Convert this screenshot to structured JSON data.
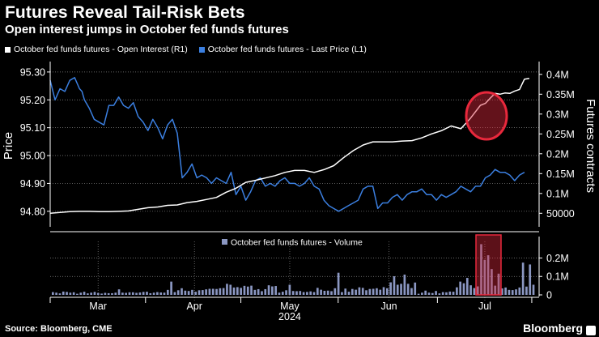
{
  "title": "Futures Reveal Tail-Risk Bets",
  "subtitle": "Open interest jumps in October fed funds futures",
  "legend": [
    {
      "label": "October fed funds futures - Open Interest (R1)",
      "color": "#ffffff"
    },
    {
      "label": "October fed funds futures - Last Price (L1)",
      "color": "#3b7fe0"
    }
  ],
  "footer": {
    "source": "Source: Bloomberg, CME",
    "brand": "Bloomberg"
  },
  "chart_data": [
    {
      "type": "line",
      "title": "Futures Reveal Tail-Risk Bets",
      "ylabel": "Price",
      "y2label": "Futures contracts",
      "ylim": [
        94.75,
        95.32
      ],
      "yticks": [
        94.8,
        94.9,
        95.0,
        95.1,
        95.2,
        95.3
      ],
      "ytick_labels": [
        "94.80",
        "94.90",
        "95.00",
        "95.10",
        "95.20",
        "95.30"
      ],
      "y2lim": [
        20000,
        420000
      ],
      "y2ticks": [
        50000,
        100000,
        150000,
        200000,
        250000,
        300000,
        350000,
        400000
      ],
      "y2tick_labels": [
        "50000",
        "0.1M",
        "0.15M",
        "0.2M",
        "0.25M",
        "0.3M",
        "0.35M",
        "0.4M"
      ],
      "x_range": [
        0,
        100
      ],
      "series": [
        {
          "name": "October fed funds futures - Last Price (L1)",
          "axis": "left",
          "color": "#3b7fe0",
          "x": [
            0,
            1,
            2,
            3,
            4,
            5,
            6,
            6.5,
            7,
            8,
            9,
            10,
            11,
            12,
            13,
            14,
            15,
            16,
            17,
            18,
            19,
            20,
            21,
            22,
            23,
            24,
            25,
            26,
            26.5,
            27,
            28,
            29,
            30,
            31,
            32,
            33,
            34,
            35,
            36,
            37,
            38,
            39,
            40,
            41,
            42,
            43,
            44,
            45,
            46,
            47,
            48,
            49,
            50,
            51,
            52,
            53,
            54,
            55,
            56,
            57,
            58,
            59,
            60,
            61,
            62,
            63,
            64,
            65,
            66,
            67,
            68,
            69,
            70,
            71,
            72,
            73,
            74,
            75,
            76,
            77,
            78,
            79,
            80,
            81,
            82,
            83,
            84,
            85,
            86,
            87,
            88,
            89,
            90,
            91,
            92,
            93,
            94,
            95,
            96,
            97
          ],
          "values": [
            95.27,
            95.2,
            95.24,
            95.23,
            95.27,
            95.28,
            95.24,
            95.23,
            95.2,
            95.17,
            95.13,
            95.12,
            95.11,
            95.18,
            95.18,
            95.21,
            95.18,
            95.17,
            95.19,
            95.14,
            95.12,
            95.09,
            95.13,
            95.1,
            95.06,
            95.11,
            95.13,
            95.08,
            95.0,
            94.92,
            94.94,
            94.97,
            94.92,
            94.93,
            94.92,
            94.9,
            94.92,
            94.91,
            94.9,
            94.94,
            94.86,
            94.89,
            94.84,
            94.87,
            94.91,
            94.92,
            94.89,
            94.9,
            94.89,
            94.91,
            94.92,
            94.9,
            94.9,
            94.89,
            94.9,
            94.92,
            94.89,
            94.88,
            94.84,
            94.82,
            94.81,
            94.8,
            94.81,
            94.82,
            94.83,
            94.84,
            94.88,
            94.89,
            94.89,
            94.81,
            94.83,
            94.83,
            94.85,
            94.86,
            94.84,
            94.86,
            94.87,
            94.87,
            94.88,
            94.86,
            94.86,
            94.84,
            94.86,
            94.85,
            94.86,
            94.87,
            94.89,
            94.88,
            94.87,
            94.89,
            94.89,
            94.92,
            94.93,
            94.95,
            94.94,
            94.94,
            94.93,
            94.91,
            94.93,
            94.94
          ],
          "note": "values approximate, read from gridlines"
        },
        {
          "name": "October fed funds futures - Open Interest (R1)",
          "axis": "right",
          "color": "#ffffff",
          "x": [
            0,
            2,
            4,
            6,
            8,
            10,
            12,
            14,
            16,
            18,
            20,
            22,
            24,
            26,
            28,
            30,
            32,
            34,
            36,
            38,
            40,
            42,
            44,
            46,
            48,
            50,
            52,
            54,
            56,
            58,
            60,
            62,
            64,
            66,
            68,
            70,
            72,
            74,
            76,
            78,
            80,
            82,
            84,
            86,
            88,
            89,
            90,
            91,
            92,
            93,
            94,
            95,
            96,
            97,
            98
          ],
          "values": [
            50000,
            52000,
            54000,
            55000,
            55000,
            54000,
            54000,
            55000,
            56000,
            60000,
            64000,
            66000,
            70000,
            71000,
            77000,
            80000,
            85000,
            90000,
            103000,
            113000,
            128000,
            133000,
            139000,
            145000,
            153000,
            158000,
            158000,
            153000,
            160000,
            170000,
            190000,
            208000,
            222000,
            230000,
            230000,
            230000,
            232000,
            233000,
            240000,
            250000,
            258000,
            270000,
            263000,
            290000,
            322000,
            327000,
            340000,
            352000,
            350000,
            353000,
            352000,
            358000,
            362000,
            388000,
            390000
          ],
          "note": "values approximate, read from gridlines"
        }
      ],
      "annotations": [
        "red circle highlighting open interest jump in early July"
      ]
    },
    {
      "type": "bar",
      "title": "October fed funds futures - Volume",
      "ylim": [
        0,
        290000
      ],
      "yticks": [
        0,
        100000,
        200000
      ],
      "ytick_labels": [
        "0",
        "0.1M",
        "0.2M"
      ],
      "x_range": [
        0,
        100
      ],
      "xtick_labels": [
        "Mar",
        "Apr",
        "May",
        "Jun",
        "Jul"
      ],
      "xtick_positions": [
        9.8,
        29.5,
        49.0,
        69.3,
        88.9
      ],
      "year_label": "2024",
      "series": [
        {
          "name": "October fed funds futures - Volume",
          "color": "#8b97c2",
          "values": [
            15000,
            12000,
            8000,
            18000,
            16000,
            12000,
            14000,
            6000,
            12000,
            17000,
            8000,
            12000,
            16000,
            10000,
            7000,
            11000,
            9000,
            9000,
            12000,
            30000,
            12000,
            11000,
            14000,
            14000,
            11000,
            13000,
            16000,
            17000,
            9000,
            12000,
            15000,
            13000,
            12000,
            27000,
            72000,
            15000,
            25000,
            36000,
            23000,
            21000,
            27000,
            17000,
            25000,
            26000,
            30000,
            33000,
            33000,
            32000,
            36000,
            37000,
            60000,
            55000,
            40000,
            42000,
            38000,
            49000,
            45000,
            50000,
            27000,
            31000,
            20000,
            31000,
            52000,
            46000,
            48000,
            12000,
            17000,
            25000,
            55000,
            21000,
            20000,
            21000,
            15000,
            16000,
            19000,
            15000,
            38000,
            28000,
            22000,
            23000,
            20000,
            36000,
            120000,
            15000,
            34000,
            17000,
            32000,
            28000,
            41000,
            38000,
            25000,
            32000,
            33000,
            36000,
            28000,
            42000,
            36000,
            68000,
            101000,
            55000,
            60000,
            110000,
            60000,
            37000,
            67000,
            6000,
            12000,
            23000,
            12000,
            10000,
            21000,
            8000,
            15000,
            14000,
            18000,
            17000,
            41000,
            72000,
            63000,
            92000,
            52000,
            37000,
            46000,
            275000,
            190000,
            215000,
            140000,
            50000,
            115000,
            35000,
            40000,
            27000,
            26000,
            30000,
            40000,
            175000,
            45000,
            165000,
            55000
          ],
          "note": "values approximate, read from gridlines"
        }
      ],
      "annotations": [
        "red box highlighting early July volume spike"
      ]
    }
  ]
}
